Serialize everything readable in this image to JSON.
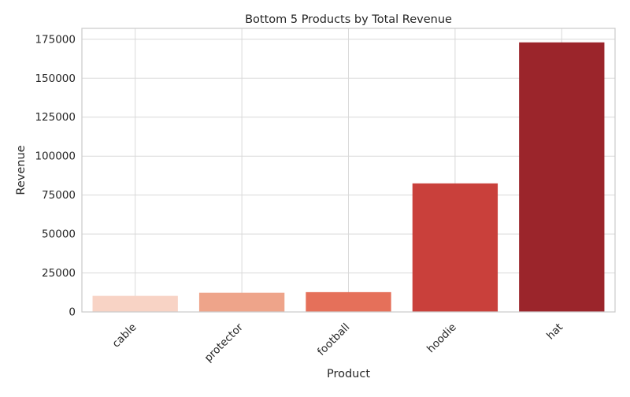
{
  "chart_data": {
    "type": "bar",
    "title": "Bottom 5 Products by Total Revenue",
    "xlabel": "Product",
    "ylabel": "Revenue",
    "categories": [
      "cable",
      "protector",
      "football",
      "hoodie",
      "hat"
    ],
    "values": [
      10300,
      12300,
      12700,
      82500,
      173000
    ],
    "colors": [
      "#f8d3c5",
      "#eea48a",
      "#e5705a",
      "#c9403b",
      "#9b252b"
    ],
    "ylim": [
      0,
      182000
    ],
    "yticks": [
      0,
      25000,
      50000,
      75000,
      100000,
      125000,
      150000,
      175000
    ],
    "ytick_labels": [
      "0",
      "25000",
      "50000",
      "75000",
      "100000",
      "125000",
      "150000",
      "175000"
    ],
    "grid": true,
    "x_tick_rotation_deg": 45
  }
}
